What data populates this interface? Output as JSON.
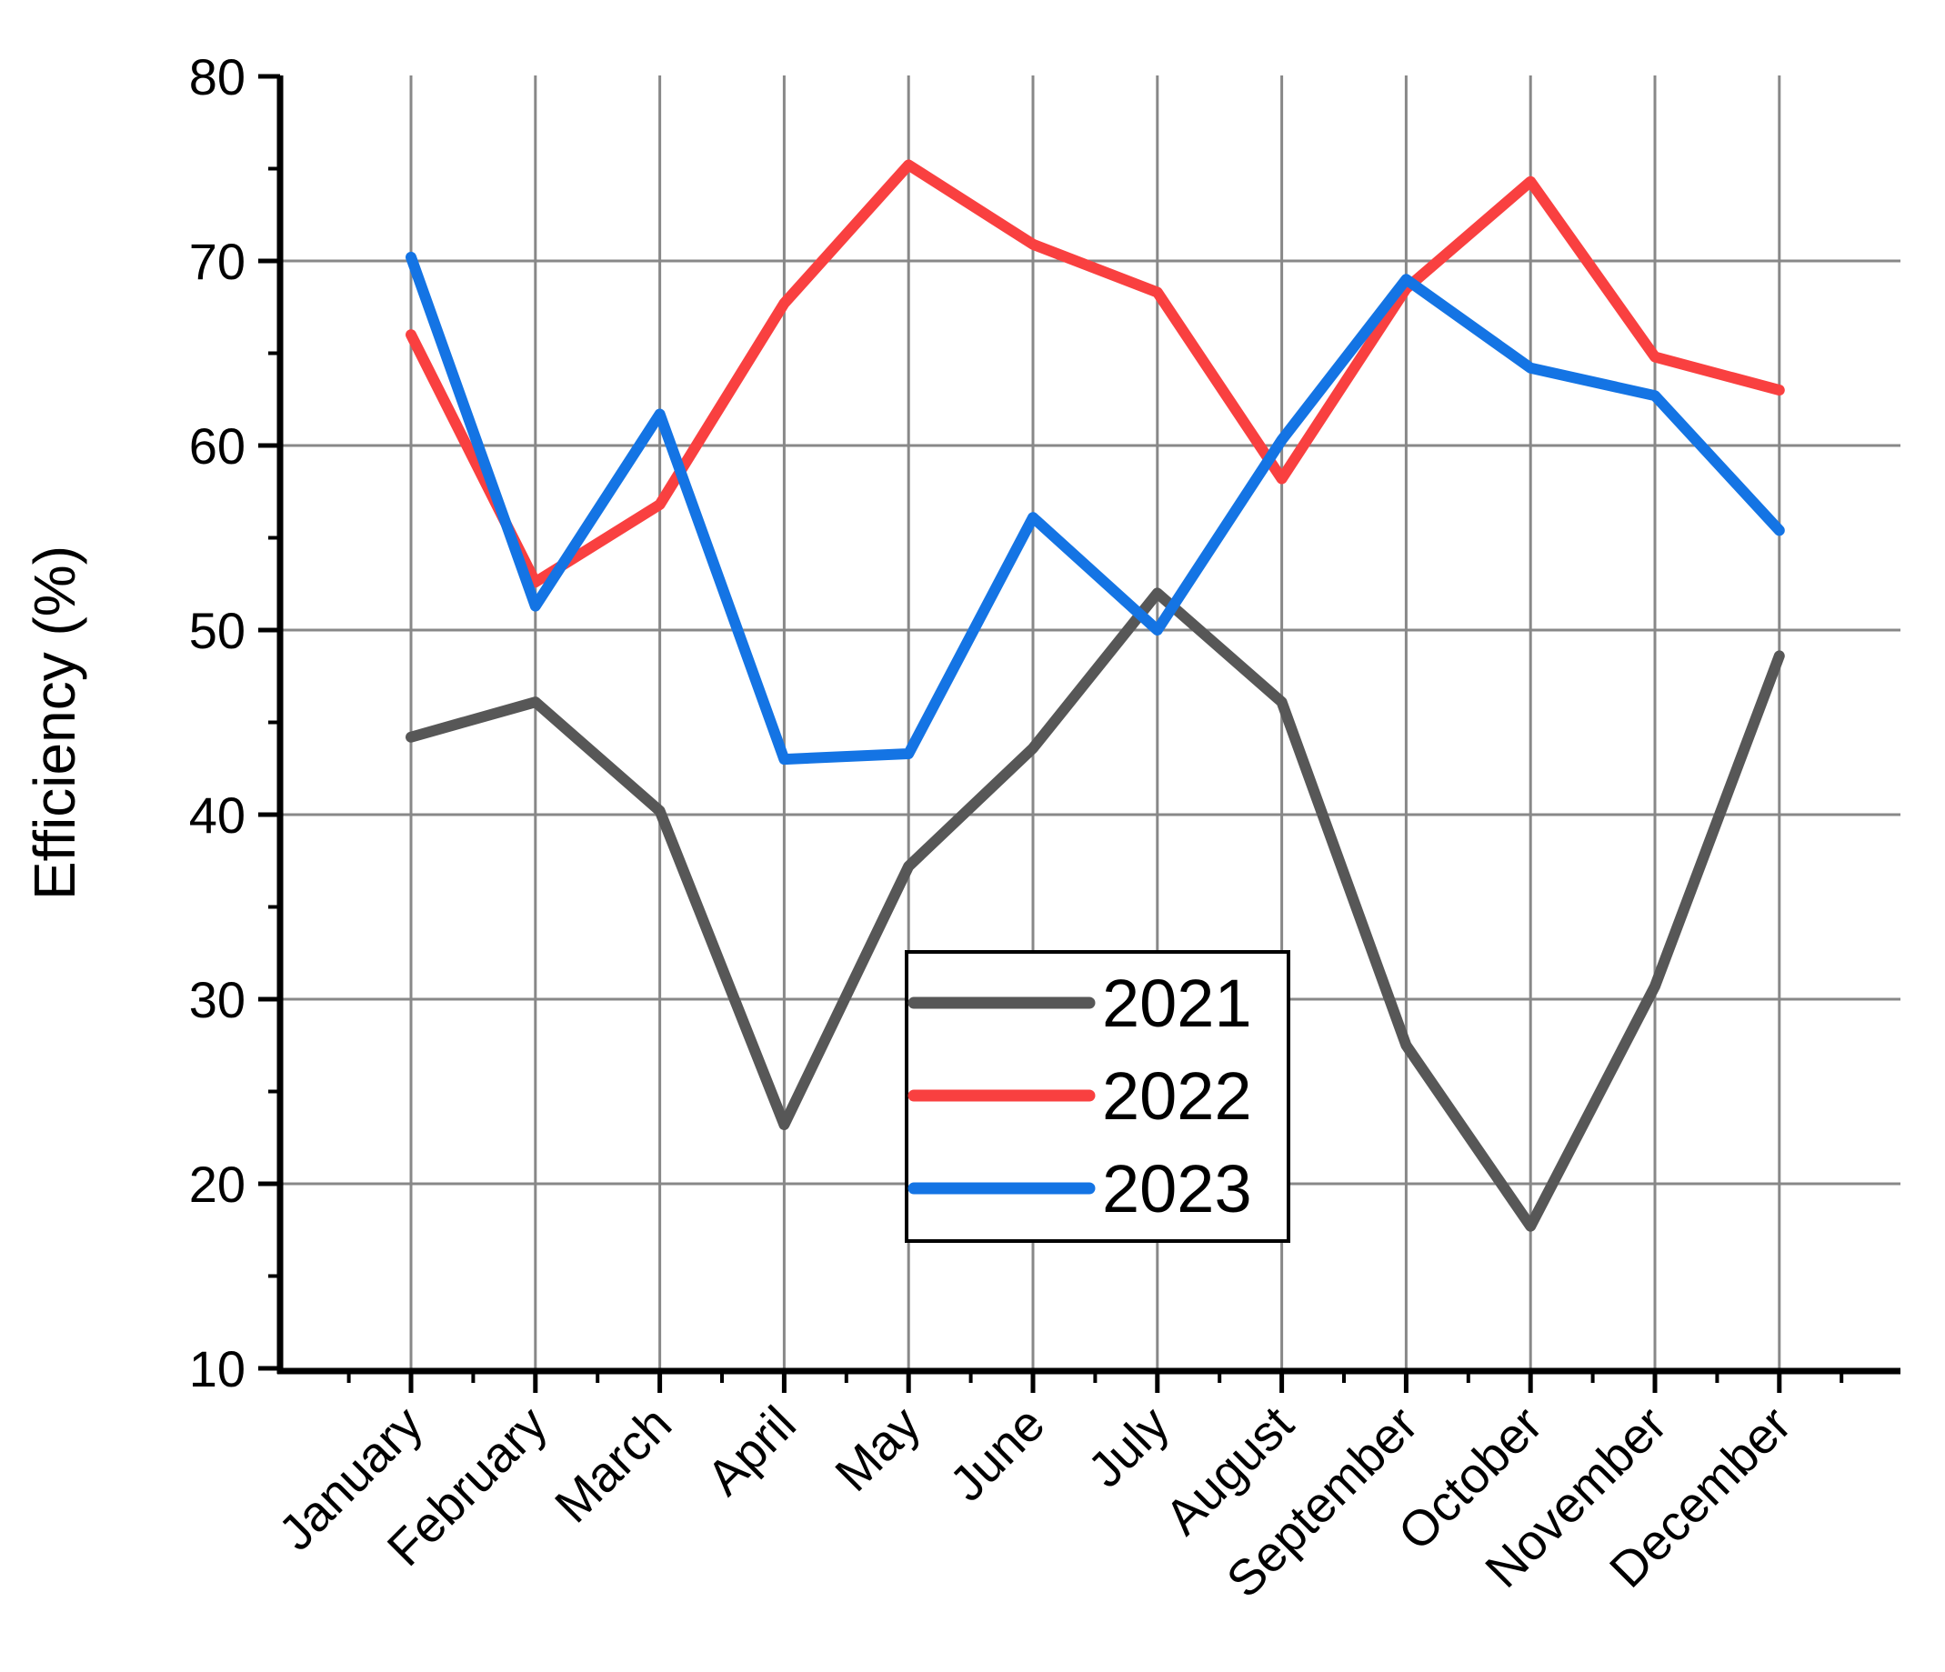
{
  "chart_data": {
    "type": "line",
    "title": "",
    "xlabel": "",
    "ylabel": "Efficiency (%)",
    "ylim": [
      10,
      80
    ],
    "y_ticks": [
      80,
      70,
      60,
      50,
      40,
      30,
      20,
      10
    ],
    "y_minor_ticks": [
      75,
      65,
      55,
      45,
      35,
      25,
      15
    ],
    "grid": true,
    "legend_position": "center-bottom",
    "categories": [
      "January",
      "February",
      "March",
      "April",
      "May",
      "June",
      "July",
      "August",
      "September",
      "October",
      "November",
      "December"
    ],
    "series": [
      {
        "name": "2021",
        "color": "#575757",
        "values": [
          44.2,
          46.1,
          40.2,
          23.2,
          37.2,
          43.6,
          52.0,
          46.1,
          27.5,
          17.7,
          30.7,
          48.6
        ]
      },
      {
        "name": "2022",
        "color": "#f94040",
        "values": [
          66.0,
          52.6,
          56.8,
          67.7,
          75.2,
          70.9,
          68.3,
          58.2,
          68.5,
          74.3,
          64.8,
          63.0
        ]
      },
      {
        "name": "2023",
        "color": "#1474e4",
        "values": [
          70.2,
          51.3,
          61.7,
          43.0,
          43.3,
          56.1,
          50.0,
          60.3,
          69.0,
          64.2,
          62.7,
          55.4
        ]
      }
    ],
    "colors": {
      "axis": "#000000",
      "grid": "#888888",
      "legend_border": "#000000",
      "background": "#ffffff"
    }
  }
}
